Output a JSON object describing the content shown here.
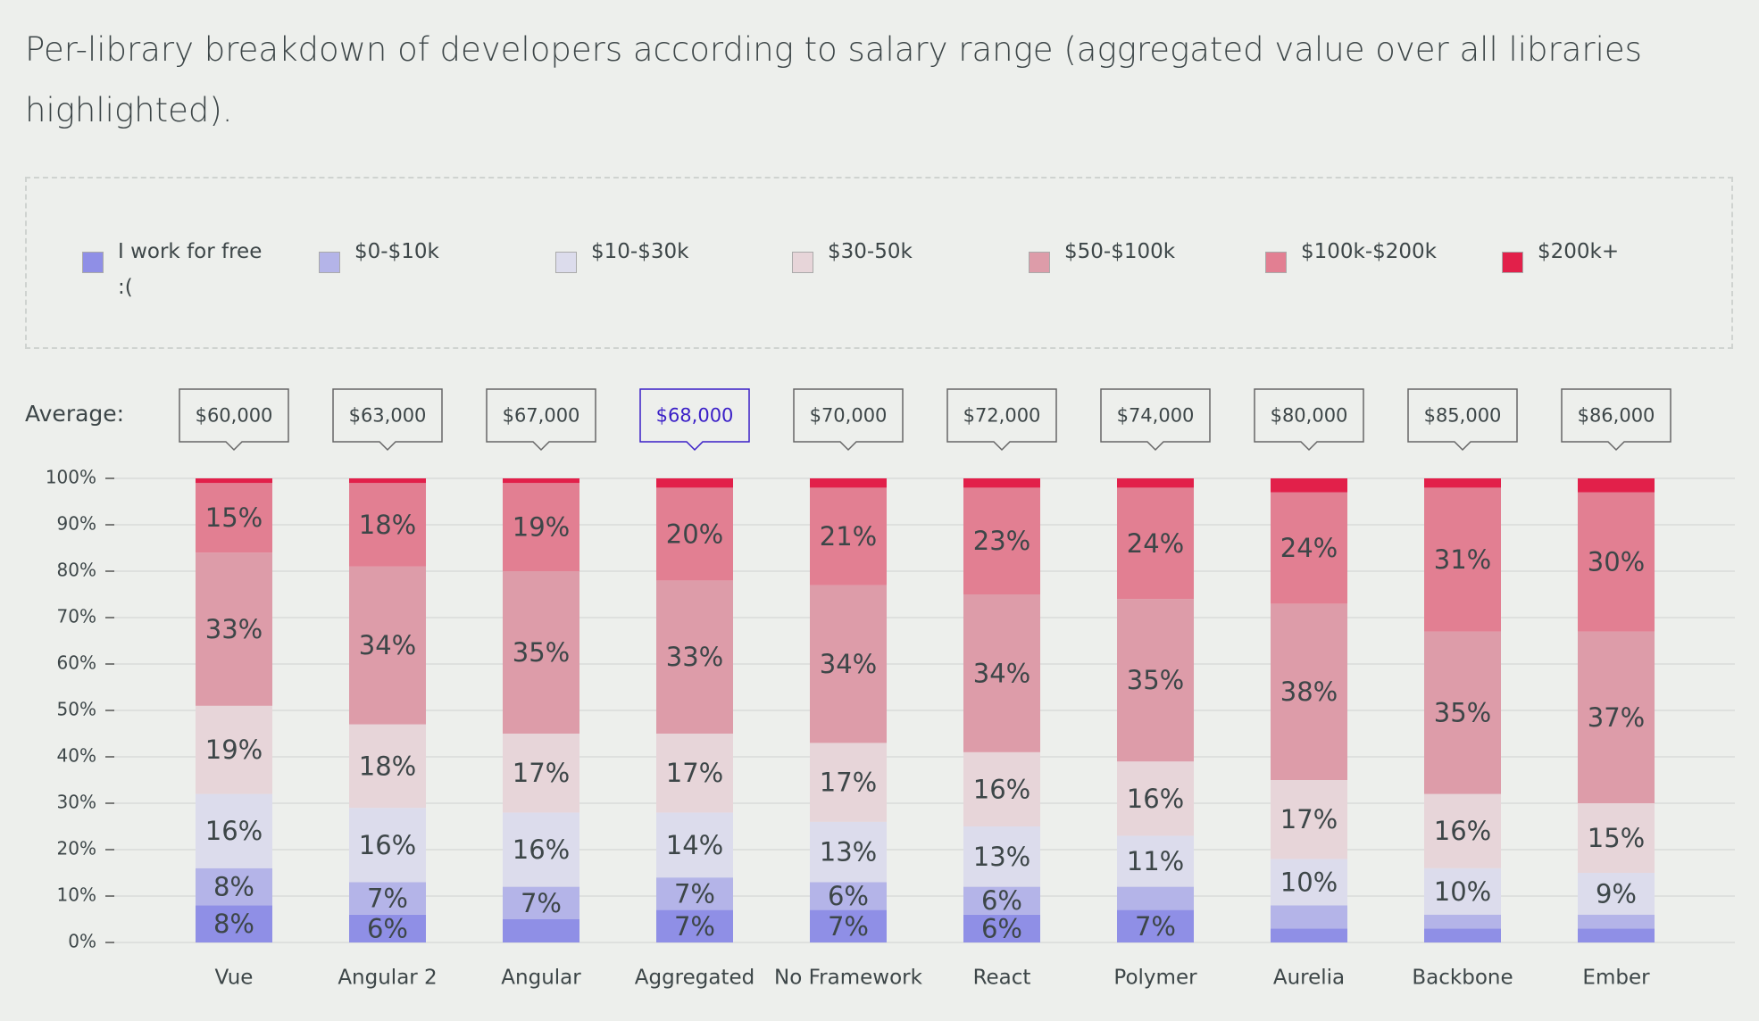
{
  "chart_data": {
    "type": "stacked-bar",
    "title": "Per-library breakdown of developers according to salary range (aggregated value over all libraries highlighted).",
    "average_label": "Average:",
    "categories": [
      "Vue",
      "Angular 2",
      "Angular",
      "Aggregated",
      "No Framework",
      "React",
      "Polymer",
      "Aurelia",
      "Backbone",
      "Ember"
    ],
    "averages": [
      "$60,000",
      "$63,000",
      "$67,000",
      "$68,000",
      "$70,000",
      "$72,000",
      "$74,000",
      "$80,000",
      "$85,000",
      "$86,000"
    ],
    "highlighted_category": "Aggregated",
    "ylim": [
      0,
      100
    ],
    "yticks": [
      {
        "value": 0,
        "label": "0%"
      },
      {
        "value": 10,
        "label": "10%"
      },
      {
        "value": 20,
        "label": "20%"
      },
      {
        "value": 30,
        "label": "30%"
      },
      {
        "value": 40,
        "label": "40%"
      },
      {
        "value": 50,
        "label": "50%"
      },
      {
        "value": 60,
        "label": "60%"
      },
      {
        "value": 70,
        "label": "70%"
      },
      {
        "value": 80,
        "label": "80%"
      },
      {
        "value": 90,
        "label": "90%"
      },
      {
        "value": 100,
        "label": "100%"
      }
    ],
    "grid": true,
    "series": [
      {
        "name": "I work for free :(",
        "color": "#8f8fe6",
        "values": [
          8,
          6,
          5,
          7,
          7,
          6,
          7,
          3,
          3,
          3
        ],
        "value_labels": [
          "8%",
          "6%",
          null,
          "7%",
          "7%",
          "6%",
          "7%",
          null,
          null,
          null
        ]
      },
      {
        "name": "$0-$10k",
        "color": "#b4b4e8",
        "values": [
          8,
          7,
          7,
          7,
          6,
          6,
          5,
          5,
          3,
          3
        ],
        "value_labels": [
          "8%",
          "7%",
          "7%",
          "7%",
          "6%",
          "6%",
          null,
          null,
          null,
          null
        ]
      },
      {
        "name": "$10-$30k",
        "color": "#dcdcec",
        "values": [
          16,
          16,
          16,
          14,
          13,
          13,
          11,
          10,
          10,
          9
        ],
        "value_labels": [
          "16%",
          "16%",
          "16%",
          "14%",
          "13%",
          "13%",
          "11%",
          "10%",
          "10%",
          "9%"
        ]
      },
      {
        "name": "$30-50k",
        "color": "#e7d5d9",
        "values": [
          19,
          18,
          17,
          17,
          17,
          16,
          16,
          17,
          16,
          15
        ],
        "value_labels": [
          "19%",
          "18%",
          "17%",
          "17%",
          "17%",
          "16%",
          "16%",
          "17%",
          "16%",
          "15%"
        ]
      },
      {
        "name": "$50-$100k",
        "color": "#dd9ca9",
        "values": [
          33,
          34,
          35,
          33,
          34,
          34,
          35,
          38,
          35,
          37
        ],
        "value_labels": [
          "33%",
          "34%",
          "35%",
          "33%",
          "34%",
          "34%",
          "35%",
          "38%",
          "35%",
          "37%"
        ]
      },
      {
        "name": "$100k-$200k",
        "color": "#e27f92",
        "values": [
          15,
          18,
          19,
          20,
          21,
          23,
          24,
          24,
          31,
          30
        ],
        "value_labels": [
          "15%",
          "18%",
          "19%",
          "20%",
          "21%",
          "23%",
          "24%",
          "24%",
          "31%",
          "30%"
        ]
      },
      {
        "name": "$200k+",
        "color": "#e2204a",
        "values": [
          1,
          1,
          1,
          2,
          2,
          2,
          2,
          3,
          2,
          3
        ],
        "value_labels": [
          null,
          null,
          null,
          null,
          null,
          null,
          null,
          null,
          null,
          null
        ]
      }
    ]
  }
}
